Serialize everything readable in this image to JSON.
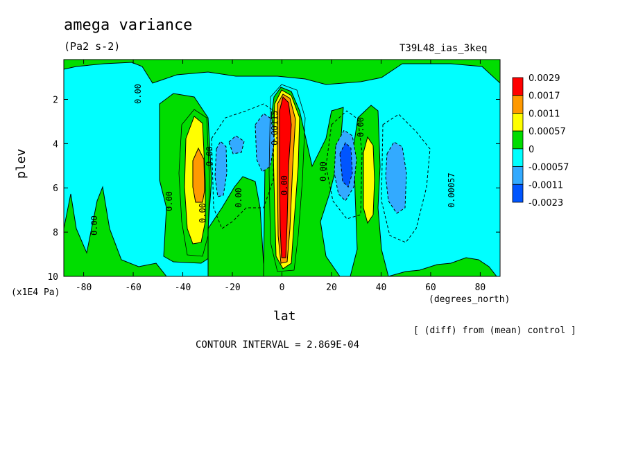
{
  "chart_data": {
    "type": "heatmap",
    "title": "amega variance",
    "units": "(Pa2 s-2)",
    "dataset": "T39L48_ias_3keq",
    "xlabel": "lat",
    "xunits": "(degrees_north)",
    "ylabel": "plev",
    "yunits": "(x1E4 Pa)",
    "xlim": [
      -88,
      88
    ],
    "ylim": [
      10,
      0.2
    ],
    "xticks": [
      -80,
      -60,
      -40,
      -20,
      0,
      20,
      40,
      60,
      80
    ],
    "yticks": [
      2,
      4,
      6,
      8,
      10
    ],
    "colorbar": {
      "levels": [
        "0.0029",
        "0.0017",
        "0.0011",
        "0.00057",
        "0",
        "-0.00057",
        "-0.0011",
        "-0.0023"
      ],
      "colors": [
        "#ff0000",
        "#ff9900",
        "#ffff00",
        "#00dd00",
        "#00ffff",
        "#33aaff",
        "#0055ff"
      ]
    },
    "contour_labels": [
      "0.00",
      "0.00",
      "0.00",
      "0.00",
      "0.00",
      "0.00",
      "0.00",
      "0.00",
      "0.00057",
      "0.00",
      "0.00115"
    ],
    "footer_note": "[ (diff) from (mean) control ]",
    "contour_interval": "CONTOUR INTERVAL = 2.869E-04"
  }
}
